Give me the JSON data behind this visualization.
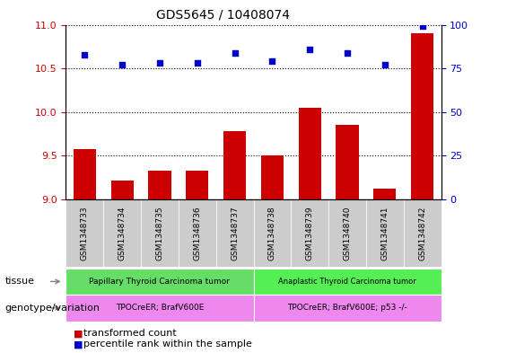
{
  "title": "GDS5645 / 10408074",
  "samples": [
    "GSM1348733",
    "GSM1348734",
    "GSM1348735",
    "GSM1348736",
    "GSM1348737",
    "GSM1348738",
    "GSM1348739",
    "GSM1348740",
    "GSM1348741",
    "GSM1348742"
  ],
  "transformed_count": [
    9.58,
    9.22,
    9.33,
    9.33,
    9.78,
    9.5,
    10.05,
    9.85,
    9.12,
    10.9
  ],
  "percentile_rank": [
    83,
    77,
    78,
    78,
    84,
    79,
    86,
    84,
    77,
    99
  ],
  "ylim_left": [
    9,
    11
  ],
  "ylim_right": [
    0,
    100
  ],
  "yticks_left": [
    9,
    9.5,
    10,
    10.5,
    11
  ],
  "yticks_right": [
    0,
    25,
    50,
    75,
    100
  ],
  "bar_color": "#cc0000",
  "dot_color": "#0000cc",
  "tissue_group1_label": "Papillary Thyroid Carcinoma tumor",
  "tissue_group2_label": "Anaplastic Thyroid Carcinoma tumor",
  "genotype_group1_label": "TPOCreER; BrafV600E",
  "genotype_group2_label": "TPOCreER; BrafV600E; p53 -/-",
  "tissue_color1": "#66dd66",
  "tissue_color2": "#55ee55",
  "genotype_color": "#ee88ee",
  "row_label_tissue": "tissue",
  "row_label_genotype": "genotype/variation",
  "legend_bar_label": "transformed count",
  "legend_dot_label": "percentile rank within the sample",
  "split_index": 5,
  "bar_width": 0.6,
  "dotted_grid_color": "#000000",
  "tick_label_color_left": "#cc0000",
  "tick_label_color_right": "#0000cc",
  "xtick_bg_color": "#cccccc",
  "border_color": "#888888"
}
